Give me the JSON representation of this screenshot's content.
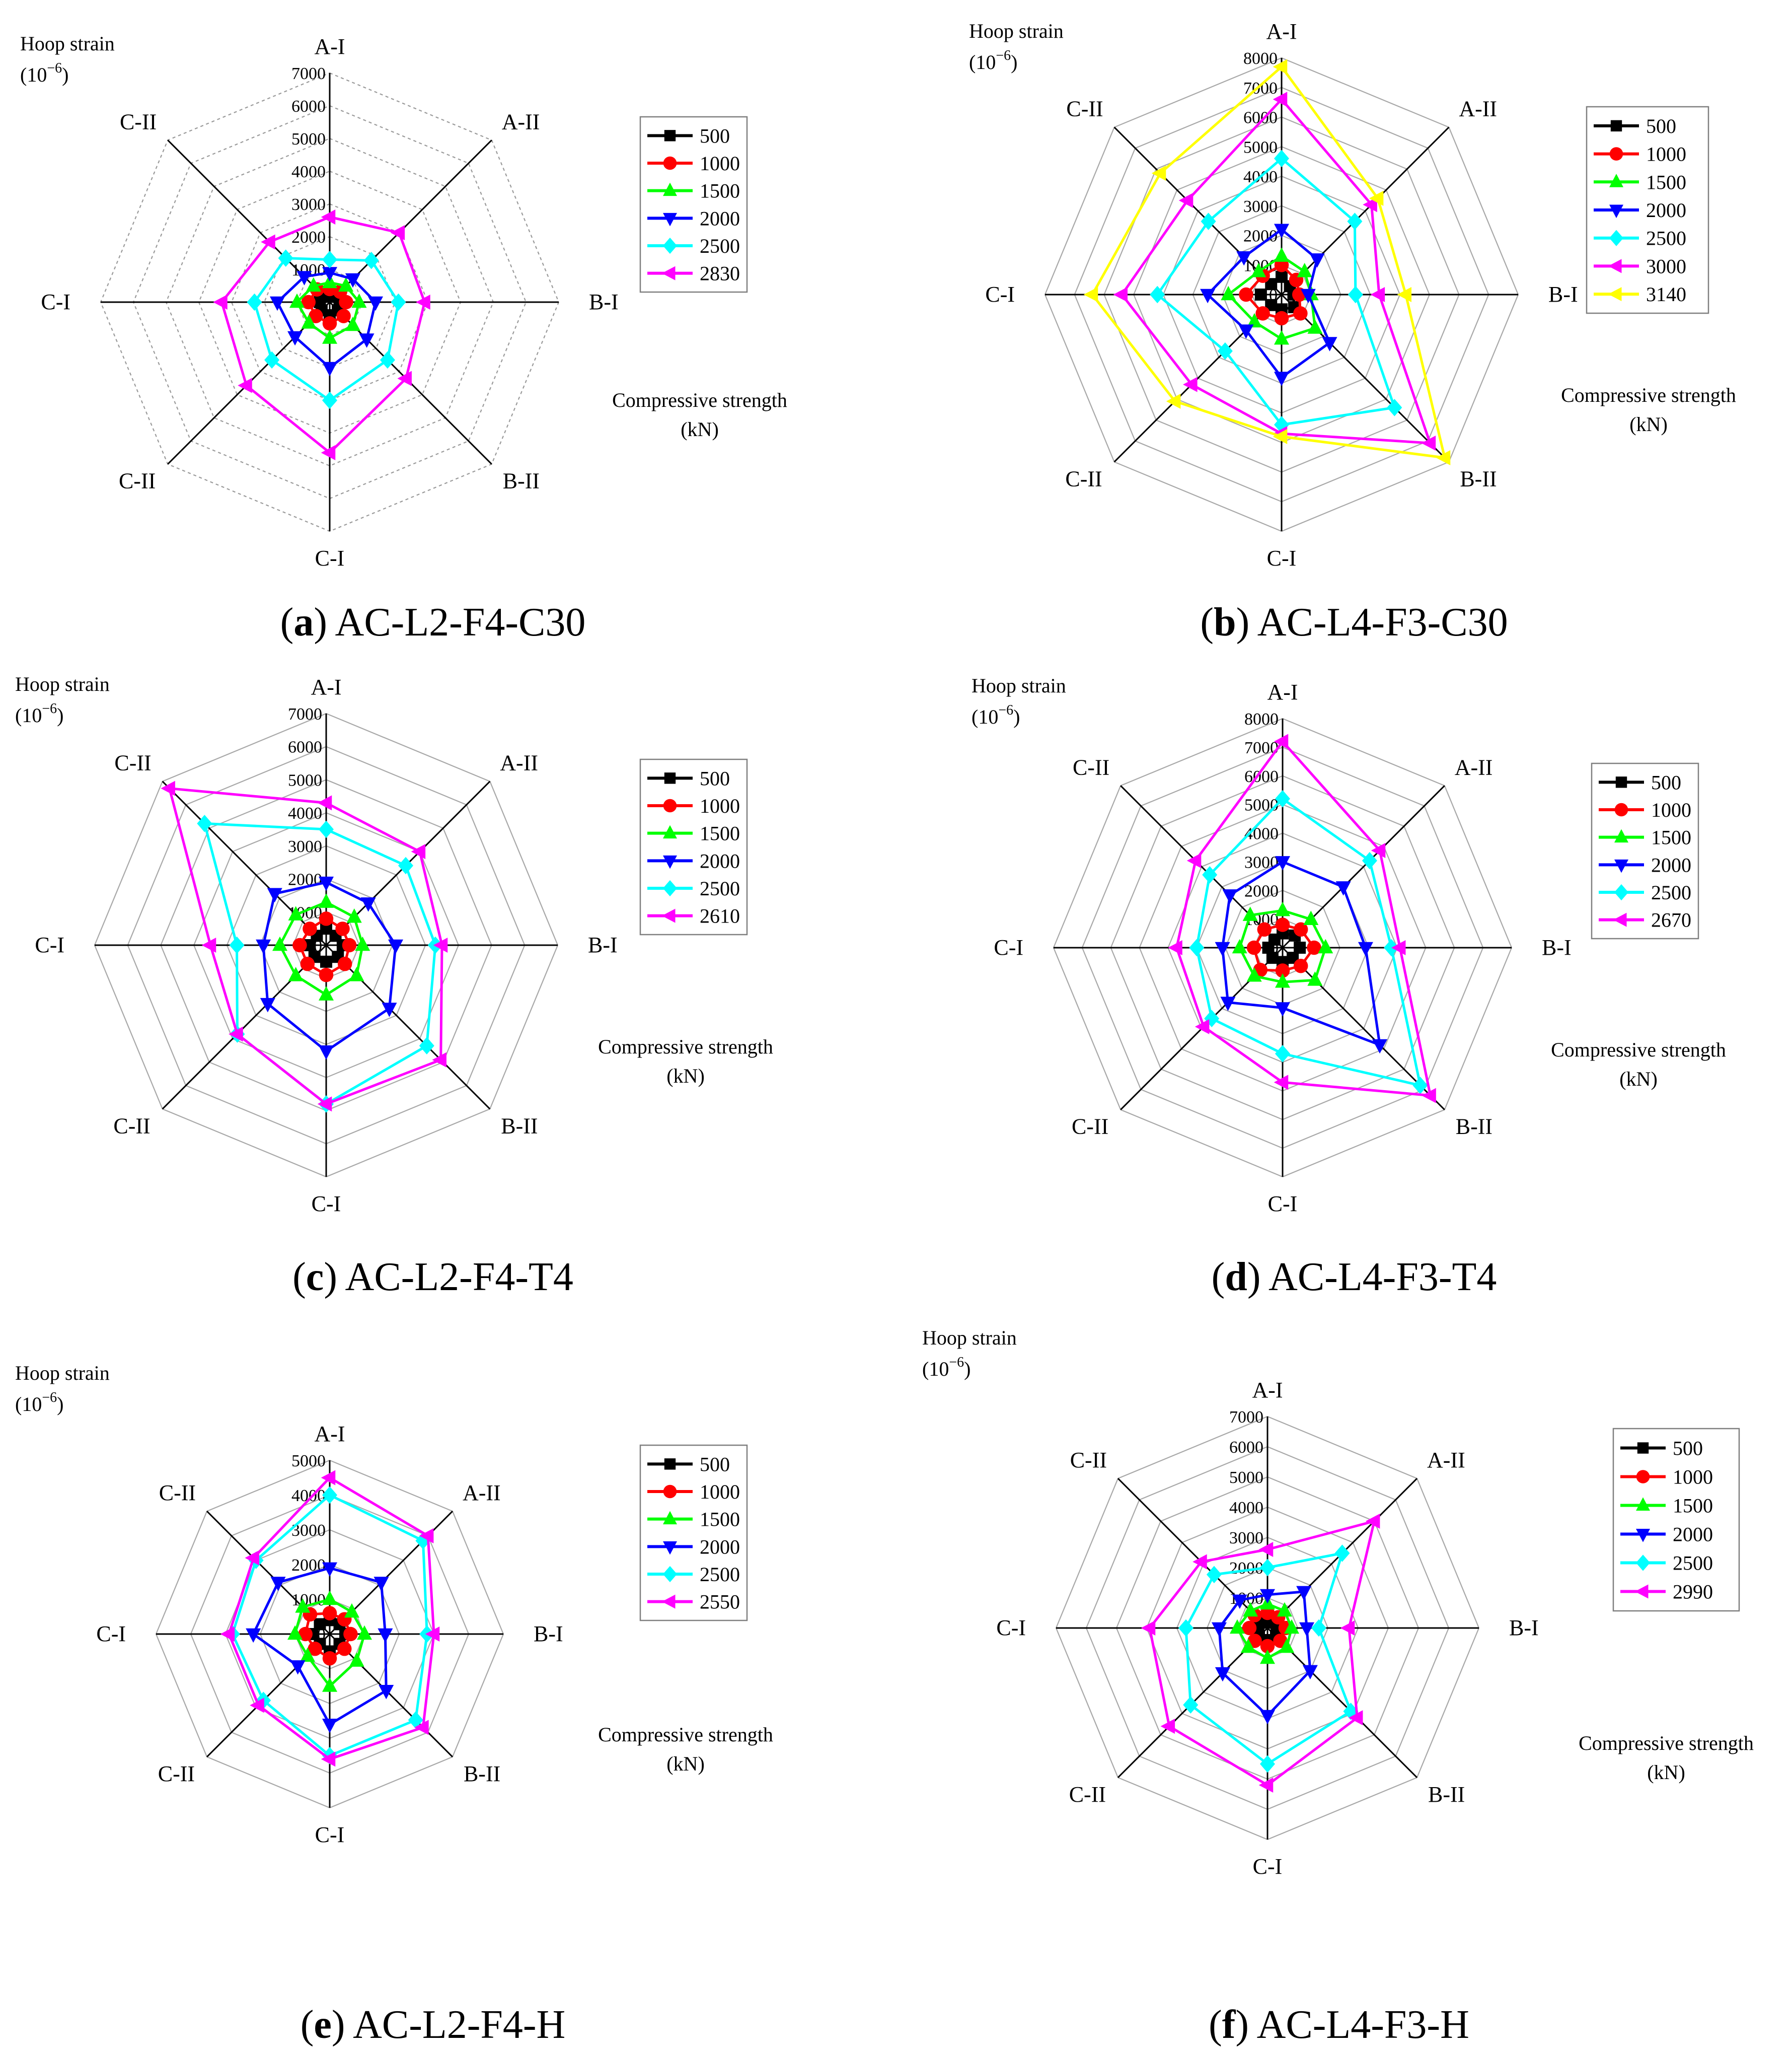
{
  "common": {
    "spoke_labels": [
      "A-I",
      "A-II",
      "B-I",
      "B-II",
      "C-I",
      "C-II",
      "C-I",
      "C-II"
    ],
    "ylabel_line1": "Hoop strain",
    "ylabel_unit": "(10",
    "ylabel_unit_sup": "−6",
    "ylabel_unit_end": ")",
    "xlabel_line1": "Compressive strength",
    "xlabel_line2": "(kN)"
  },
  "series_styles": [
    {
      "color": "#000000",
      "marker": "square"
    },
    {
      "color": "#ff0000",
      "marker": "circle"
    },
    {
      "color": "#00ff00",
      "marker": "triangle-up"
    },
    {
      "color": "#0000ff",
      "marker": "triangle-down"
    },
    {
      "color": "#00ffff",
      "marker": "diamond"
    },
    {
      "color": "#ff00ff",
      "marker": "triangle-left"
    },
    {
      "color": "#ffff00",
      "marker": "triangle-left"
    }
  ],
  "chart_data": [
    {
      "type": "radar",
      "caption_letter": "(a)",
      "caption_text": "AC-L2-F4-C30",
      "categories": [
        "A-I",
        "A-II",
        "B-I",
        "B-II",
        "C-I",
        "C-II",
        "C-I",
        "C-II"
      ],
      "rmax": 7000,
      "ticks": [
        0,
        1000,
        2000,
        3000,
        4000,
        5000,
        6000,
        7000
      ],
      "grid_style": "dashed",
      "series": [
        {
          "name": "500",
          "values": [
            200,
            250,
            300,
            350,
            400,
            350,
            300,
            250
          ]
        },
        {
          "name": "1000",
          "values": [
            400,
            450,
            500,
            600,
            650,
            600,
            650,
            550
          ]
        },
        {
          "name": "1500",
          "values": [
            600,
            700,
            900,
            1000,
            1100,
            900,
            1000,
            700
          ]
        },
        {
          "name": "2000",
          "values": [
            900,
            1000,
            1400,
            1600,
            2000,
            1500,
            1600,
            1100
          ]
        },
        {
          "name": "2500",
          "values": [
            1300,
            1800,
            2100,
            2500,
            3000,
            2500,
            2300,
            1900
          ]
        },
        {
          "name": "2830",
          "values": [
            2600,
            3000,
            2900,
            3300,
            4600,
            3600,
            3300,
            2600
          ]
        }
      ]
    },
    {
      "type": "radar",
      "caption_letter": "(b)",
      "caption_text": "AC-L4-F3-C30",
      "categories": [
        "A-I",
        "A-II",
        "B-I",
        "B-II",
        "C-I",
        "C-II",
        "C-I",
        "C-II"
      ],
      "rmax": 8000,
      "ticks": [
        0,
        1000,
        2000,
        3000,
        4000,
        5000,
        6000,
        7000,
        8000
      ],
      "grid_style": "solid",
      "series": [
        {
          "name": "500",
          "values": [
            600,
            400,
            400,
            600,
            500,
            500,
            700,
            500
          ]
        },
        {
          "name": "1000",
          "values": [
            1000,
            700,
            600,
            900,
            800,
            900,
            1200,
            900
          ]
        },
        {
          "name": "1500",
          "values": [
            1300,
            1100,
            1000,
            1600,
            1500,
            1300,
            1800,
            1100
          ]
        },
        {
          "name": "2000",
          "values": [
            2200,
            1700,
            900,
            2300,
            2800,
            1700,
            2500,
            1800
          ]
        },
        {
          "name": "2500",
          "values": [
            4600,
            3500,
            2500,
            5400,
            4400,
            2700,
            4200,
            3500
          ]
        },
        {
          "name": "3000",
          "values": [
            6600,
            4300,
            3300,
            7100,
            4700,
            4300,
            5400,
            4500
          ]
        },
        {
          "name": "3140",
          "values": [
            7700,
            4600,
            4200,
            7800,
            4800,
            5100,
            6400,
            5800
          ]
        }
      ]
    },
    {
      "type": "radar",
      "caption_letter": "(c)",
      "caption_text": "AC-L2-F4-T4",
      "categories": [
        "A-I",
        "A-II",
        "B-I",
        "B-II",
        "C-I",
        "C-II",
        "C-I",
        "C-II"
      ],
      "rmax": 7000,
      "ticks": [
        0,
        1000,
        2000,
        3000,
        4000,
        5000,
        6000,
        7000
      ],
      "grid_style": "solid",
      "series": [
        {
          "name": "500",
          "values": [
            500,
            400,
            500,
            500,
            500,
            500,
            500,
            400
          ]
        },
        {
          "name": "1000",
          "values": [
            800,
            700,
            700,
            800,
            900,
            800,
            800,
            700
          ]
        },
        {
          "name": "1500",
          "values": [
            1300,
            1200,
            1100,
            1300,
            1500,
            1300,
            1400,
            1300
          ]
        },
        {
          "name": "2000",
          "values": [
            1900,
            1800,
            2100,
            2700,
            3200,
            2500,
            1900,
            2200
          ]
        },
        {
          "name": "2500",
          "values": [
            3500,
            3400,
            3300,
            4300,
            4800,
            3800,
            2700,
            5200
          ]
        },
        {
          "name": "2610",
          "values": [
            4300,
            4000,
            3500,
            4900,
            4800,
            3800,
            3500,
            6700
          ]
        }
      ]
    },
    {
      "type": "radar",
      "caption_letter": "(d)",
      "caption_text": "AC-L4-F3-T4",
      "categories": [
        "A-I",
        "A-II",
        "B-I",
        "B-II",
        "C-I",
        "C-II",
        "C-I",
        "C-II"
      ],
      "rmax": 8000,
      "ticks": [
        0,
        1000,
        2000,
        3000,
        4000,
        5000,
        6000,
        7000,
        8000
      ],
      "grid_style": "solid",
      "series": [
        {
          "name": "500",
          "values": [
            500,
            600,
            600,
            500,
            500,
            500,
            500,
            400
          ]
        },
        {
          "name": "1000",
          "values": [
            800,
            900,
            1100,
            900,
            800,
            1100,
            1000,
            900
          ]
        },
        {
          "name": "1500",
          "values": [
            1300,
            1400,
            1500,
            1600,
            1200,
            1400,
            1500,
            1600
          ]
        },
        {
          "name": "2000",
          "values": [
            3000,
            3000,
            2900,
            4800,
            2100,
            2700,
            2100,
            2600
          ]
        },
        {
          "name": "2500",
          "values": [
            5200,
            4300,
            3800,
            6800,
            3700,
            3500,
            3000,
            3600
          ]
        },
        {
          "name": "2670",
          "values": [
            7200,
            4800,
            4100,
            7300,
            4700,
            3900,
            3700,
            4300
          ]
        }
      ]
    },
    {
      "type": "radar",
      "caption_letter": "(e)",
      "caption_text": "AC-L2-F4-H",
      "categories": [
        "A-I",
        "A-II",
        "B-I",
        "B-II",
        "C-I",
        "C-II",
        "C-I",
        "C-II"
      ],
      "rmax": 5000,
      "ticks": [
        0,
        1000,
        2000,
        3000,
        4000,
        5000
      ],
      "grid_style": "solid",
      "series": [
        {
          "name": "500",
          "values": [
            400,
            400,
            450,
            400,
            500,
            400,
            500,
            400
          ]
        },
        {
          "name": "1000",
          "values": [
            600,
            600,
            600,
            600,
            700,
            600,
            700,
            800
          ]
        },
        {
          "name": "1500",
          "values": [
            1000,
            900,
            1000,
            1100,
            1500,
            900,
            1000,
            1100
          ]
        },
        {
          "name": "2000",
          "values": [
            1900,
            2100,
            1600,
            2300,
            2600,
            1300,
            2200,
            2100
          ]
        },
        {
          "name": "2500",
          "values": [
            4000,
            3800,
            2800,
            3500,
            3500,
            2700,
            2800,
            3000
          ]
        },
        {
          "name": "2550",
          "values": [
            4500,
            4000,
            3000,
            3800,
            3600,
            2900,
            2900,
            3100
          ]
        }
      ]
    },
    {
      "type": "radar",
      "caption_letter": "(f)",
      "caption_text": "AC-L4-F3-H",
      "categories": [
        "A-I",
        "A-II",
        "B-I",
        "B-II",
        "C-I",
        "C-II",
        "C-I",
        "C-II"
      ],
      "rmax": 7000,
      "ticks": [
        0,
        1000,
        2000,
        3000,
        4000,
        5000,
        6000,
        7000
      ],
      "grid_style": "solid",
      "series": [
        {
          "name": "500",
          "values": [
            300,
            300,
            300,
            400,
            400,
            400,
            300,
            300
          ]
        },
        {
          "name": "1000",
          "values": [
            500,
            500,
            600,
            600,
            600,
            600,
            600,
            600
          ]
        },
        {
          "name": "1500",
          "values": [
            800,
            800,
            800,
            900,
            1000,
            900,
            1000,
            800
          ]
        },
        {
          "name": "2000",
          "values": [
            1100,
            1700,
            1300,
            2000,
            2900,
            2100,
            1600,
            1300
          ]
        },
        {
          "name": "2500",
          "values": [
            2000,
            3500,
            1700,
            3900,
            4500,
            3600,
            2700,
            2500
          ]
        },
        {
          "name": "2990",
          "values": [
            2600,
            5000,
            2700,
            4200,
            5200,
            4600,
            3900,
            3100
          ]
        }
      ]
    }
  ]
}
